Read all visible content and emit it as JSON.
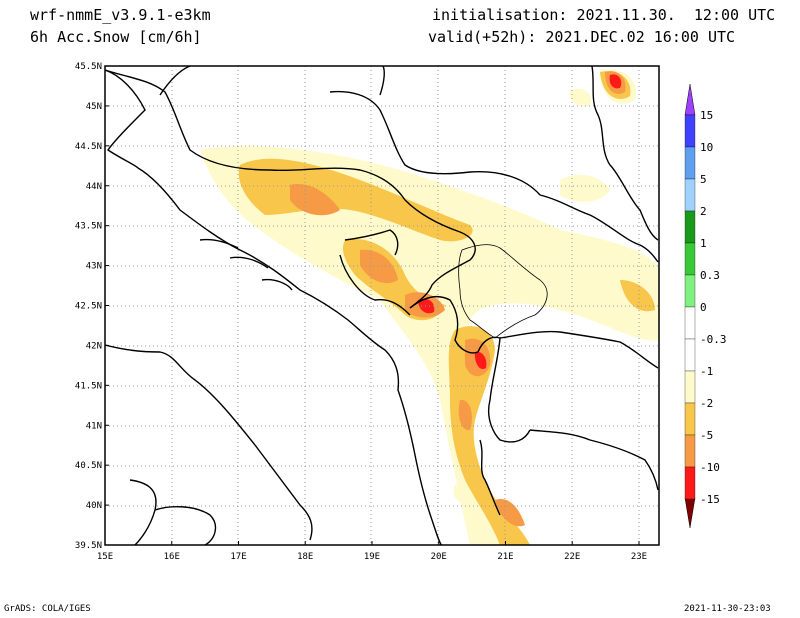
{
  "header": {
    "model": "wrf-nmmE_v3.9.1-e3km",
    "field": "6h Acc.Snow [cm/6h]",
    "init": "initialisation: 2021.11.30.  12:00 UTC",
    "valid": "valid(+52h): 2021.DEC.02 16:00 UTC"
  },
  "axes": {
    "lat_labels": [
      "45.5N",
      "45N",
      "44.5N",
      "44N",
      "43.5N",
      "43N",
      "42.5N",
      "42N",
      "41.5N",
      "41N",
      "40.5N",
      "40N",
      "39.5N"
    ],
    "lon_labels": [
      "15E",
      "16E",
      "17E",
      "18E",
      "19E",
      "20E",
      "21E",
      "22E",
      "23E"
    ],
    "lat_values": [
      45.5,
      45,
      44.5,
      44,
      43.5,
      43,
      42.5,
      42,
      41.5,
      41,
      40.5,
      40,
      39.5
    ],
    "lon_values": [
      15,
      16,
      17,
      18,
      19,
      20,
      21,
      22,
      23
    ],
    "lat_range": [
      39.5,
      45.5
    ],
    "lon_range": [
      15,
      23.3
    ],
    "grid": "dotted"
  },
  "colorbar": {
    "labels": [
      "15",
      "10",
      "5",
      "2",
      "1",
      "0.3",
      "0",
      "-0.3",
      "-1",
      "-2",
      "-5",
      "-10",
      "-15"
    ],
    "colors": [
      "#4040ff",
      "#5f9ff0",
      "#9fd0ff",
      "#1a9a1a",
      "#38c838",
      "#80f080",
      "#ffffff",
      "#ffffff",
      "#fffacc",
      "#f7c64a",
      "#f79a46",
      "#ff1a1a",
      "#b40000"
    ],
    "top_arrow_color": "#a040ff",
    "bottom_arrow_color": "#800000"
  },
  "footer": {
    "left": "GrADS: COLA/IGES",
    "right": "2021-11-30-23:03"
  }
}
